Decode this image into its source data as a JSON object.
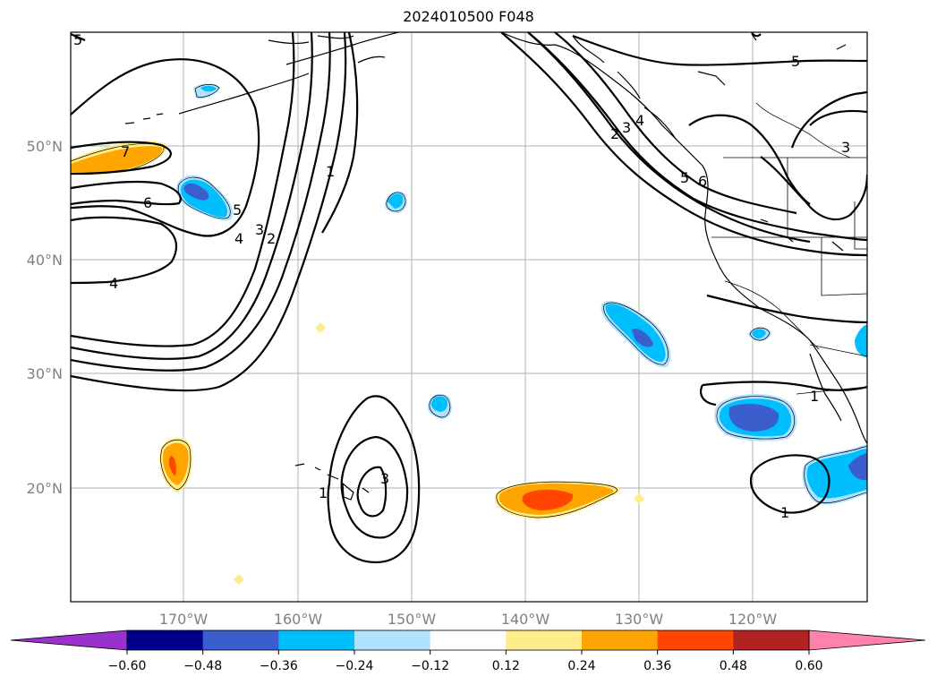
{
  "title": "2024010500 F048",
  "lat_labels": [
    "50°N",
    "40°N",
    "30°N",
    "20°N"
  ],
  "lon_labels": [
    "170°W",
    "160°W",
    "150°W",
    "140°W",
    "130°W",
    "120°W"
  ],
  "colorbar": {
    "colors": [
      "#9932cc",
      "#00008b",
      "#3a5fcd",
      "#00bfff",
      "#b0e2ff",
      "#ffffff",
      "#ffec8b",
      "#ffa500",
      "#ff4500",
      "#b22222",
      "#ff82ab"
    ],
    "tick_labels": [
      "−0.60",
      "−0.48",
      "−0.36",
      "−0.24",
      "−0.12",
      "0.12",
      "0.24",
      "0.36",
      "0.48",
      "0.60"
    ]
  },
  "contour_labels": [
    "5",
    "7",
    "6",
    "4",
    "5",
    "4",
    "3",
    "2",
    "1",
    "5",
    "4",
    "3",
    "2",
    "5",
    "6",
    "3",
    "1",
    "3",
    "1",
    "1",
    "4",
    "2"
  ]
}
